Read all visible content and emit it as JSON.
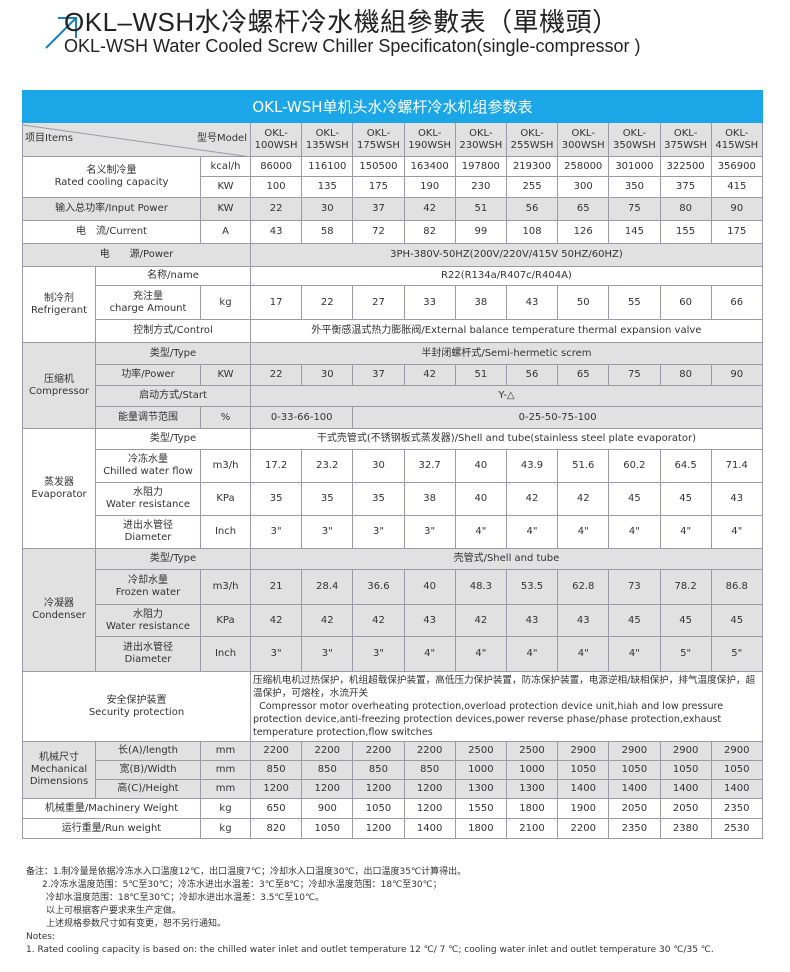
{
  "header": {
    "title_cn": "OKL–WSH水冷螺杆冷水機組參數表（單機頭）",
    "title_en": "OKL-WSH Water Cooled Screw Chiller Specificaton(single-compressor )",
    "icon": "arrow-up-right-icon",
    "accent": "#1e7fc0"
  },
  "table": {
    "title": "OKL-WSH单机头水冷螺杆冷水机组参数表",
    "title_color": "#1ba6e8",
    "items_label": "项目Items",
    "model_label": "型号Model",
    "models": [
      "OKL-100WSH",
      "OKL-135WSH",
      "OKL-175WSH",
      "OKL-190WSH",
      "OKL-230WSH",
      "OKL-255WSH",
      "OKL-300WSH",
      "OKL-350WSH",
      "OKL-375WSH",
      "OKL-415WSH"
    ],
    "cooling": {
      "label_cn": "名义制冷量",
      "label_en": "Rated cooling capacity",
      "rows": [
        {
          "unit": "kcal/h",
          "values": [
            "86000",
            "116100",
            "150500",
            "163400",
            "197800",
            "219300",
            "258000",
            "301000",
            "322500",
            "356900"
          ]
        },
        {
          "unit": "KW",
          "values": [
            "100",
            "135",
            "175",
            "190",
            "230",
            "255",
            "300",
            "350",
            "375",
            "415"
          ]
        }
      ]
    },
    "input_power": {
      "label": "输入总功率/Input Power",
      "unit": "KW",
      "values": [
        "22",
        "30",
        "37",
        "42",
        "51",
        "56",
        "65",
        "75",
        "80",
        "90"
      ]
    },
    "current": {
      "label": "电　流/Current",
      "unit": "A",
      "values": [
        "43",
        "58",
        "72",
        "82",
        "99",
        "108",
        "126",
        "145",
        "155",
        "175"
      ]
    },
    "power": {
      "label": "电　　源/Power",
      "value": "3PH-380V-50HZ(200V/220V/415V  50HZ/60HZ)"
    },
    "refrigerant": {
      "label_cn": "制冷剂",
      "label_en": "Refrigerant",
      "name": {
        "label": "名称/name",
        "value": "R22(R134a/R407c/R404A)"
      },
      "charge": {
        "label_cn": "充注量",
        "label_en": "charge Amount",
        "unit": "kg",
        "values": [
          "17",
          "22",
          "27",
          "33",
          "38",
          "43",
          "50",
          "55",
          "60",
          "66"
        ]
      },
      "control": {
        "label": "控制方式/Control",
        "value": "外平衡感温式热力膨胀阀/External balance temperature thermal expansion valve"
      }
    },
    "compressor": {
      "label_cn": "压缩机",
      "label_en": "Compressor",
      "type": {
        "label": "类型/Type",
        "value": "半封闭螺杆式/Semi-hermetic screm"
      },
      "power": {
        "label": "功率/Power",
        "unit": "KW",
        "values": [
          "22",
          "30",
          "37",
          "42",
          "51",
          "56",
          "65",
          "75",
          "80",
          "90"
        ]
      },
      "start": {
        "label": "启动方式/Start",
        "value": "Y-△"
      },
      "capacity": {
        "label": "能量调节范围",
        "unit": "%",
        "values": [
          "0-33-66-100",
          "0-25-50-75-100"
        ]
      }
    },
    "evaporator": {
      "label_cn": "蒸发器",
      "label_en": "Evaporator",
      "type": {
        "label": "类型/Type",
        "value": "干式壳管式(不锈钢板式蒸发器)/Shell and tube(stainless steel plate evaporator)"
      },
      "flow": {
        "label_cn": "冷冻水量",
        "label_en": "Chilled water flow",
        "unit": "m3/h",
        "values": [
          "17.2",
          "23.2",
          "30",
          "32.7",
          "40",
          "43.9",
          "51.6",
          "60.2",
          "64.5",
          "71.4"
        ]
      },
      "resistance": {
        "label_cn": "水阻力",
        "label_en": "Water resistance",
        "unit": "KPa",
        "values": [
          "35",
          "35",
          "35",
          "38",
          "40",
          "42",
          "42",
          "45",
          "45",
          "43"
        ]
      },
      "diameter": {
        "label_cn": "进出水管径",
        "label_en": "Diameter",
        "unit": "Inch",
        "values": [
          "3\"",
          "3\"",
          "3\"",
          "3\"",
          "4\"",
          "4\"",
          "4\"",
          "4\"",
          "4\"",
          "4\""
        ]
      }
    },
    "condenser": {
      "label_cn": "冷凝器",
      "label_en": "Condenser",
      "type": {
        "label": "类型/Type",
        "value": "壳管式/Shell and tube"
      },
      "flow": {
        "label_cn": "冷却水量",
        "label_en": "Frozen water",
        "unit": "m3/h",
        "values": [
          "21",
          "28.4",
          "36.6",
          "40",
          "48.3",
          "53.5",
          "62.8",
          "73",
          "78.2",
          "86.8"
        ]
      },
      "resistance": {
        "label_cn": "水阻力",
        "label_en": "Water resistance",
        "unit": "KPa",
        "values": [
          "42",
          "42",
          "42",
          "43",
          "42",
          "43",
          "43",
          "45",
          "45",
          "45"
        ]
      },
      "diameter": {
        "label_cn": "进出水管径",
        "label_en": "Diameter",
        "unit": "Inch",
        "values": [
          "3\"",
          "3\"",
          "3\"",
          "4\"",
          "4\"",
          "4\"",
          "4\"",
          "4\"",
          "5\"",
          "5\""
        ]
      }
    },
    "security": {
      "label_cn": "安全保护装置",
      "label_en": "Security protection",
      "text_cn": "压缩机电机过热保护，机组超载保护装置，高低压力保护装置，防冻保护装置，电源逆相/缺相保护，排气温度保护，超温保护，可熔栓，水流开关",
      "text_en": "Compressor motor overheating protection,overload protection device unit,hiah and low pressure protection device,anti-freezing protection devices,power reverse phase/phase protection,exhaust temperature protection,flow switches"
    },
    "dimensions": {
      "label_cn": "机械尺寸",
      "label_en": "Mechanical Dimensions",
      "rows": [
        {
          "label": "长(A)/length",
          "unit": "mm",
          "values": [
            "2200",
            "2200",
            "2200",
            "2200",
            "2500",
            "2500",
            "2900",
            "2900",
            "2900",
            "2900"
          ]
        },
        {
          "label": "宽(B)/Width",
          "unit": "mm",
          "values": [
            "850",
            "850",
            "850",
            "850",
            "1000",
            "1000",
            "1050",
            "1050",
            "1050",
            "1050"
          ]
        },
        {
          "label": "高(C)/Height",
          "unit": "mm",
          "values": [
            "1200",
            "1200",
            "1200",
            "1200",
            "1300",
            "1300",
            "1400",
            "1400",
            "1400",
            "1400"
          ]
        }
      ]
    },
    "machinery_weight": {
      "label": "机械重量/Machinery Weight",
      "unit": "kg",
      "values": [
        "650",
        "900",
        "1050",
        "1200",
        "1550",
        "1800",
        "1900",
        "2050",
        "2050",
        "2350"
      ]
    },
    "run_weight": {
      "label": "运行重量/Run weight",
      "unit": "kg",
      "values": [
        "820",
        "1050",
        "1200",
        "1400",
        "1800",
        "2100",
        "2200",
        "2350",
        "2380",
        "2530"
      ]
    }
  },
  "notes": {
    "cn": [
      "备注：1.制冷量是依据冷冻水入口温度12℃，出口温度7℃；冷却水入口温度30℃，出口温度35℃计算得出。",
      "2.冷冻水温度范围：5℃至30℃；冷冻水进出水温差：3℃至8℃；冷却水温度范围：18℃至30℃；",
      "冷却水温度范围：18℃至30℃；冷却水进出水温差：3.5℃至10℃。",
      "以上可根据客户要求来生产定做。",
      "上述规格参数尺寸如有变更，恕不另行通知。"
    ],
    "en_title": "Notes:",
    "en": [
      "1. Rated cooling capacity is based on: the chilled water inlet and outlet temperature 12 ℃/ 7 ℃; cooling water inlet and outlet temperature 30 ℃/35 ℃."
    ]
  }
}
